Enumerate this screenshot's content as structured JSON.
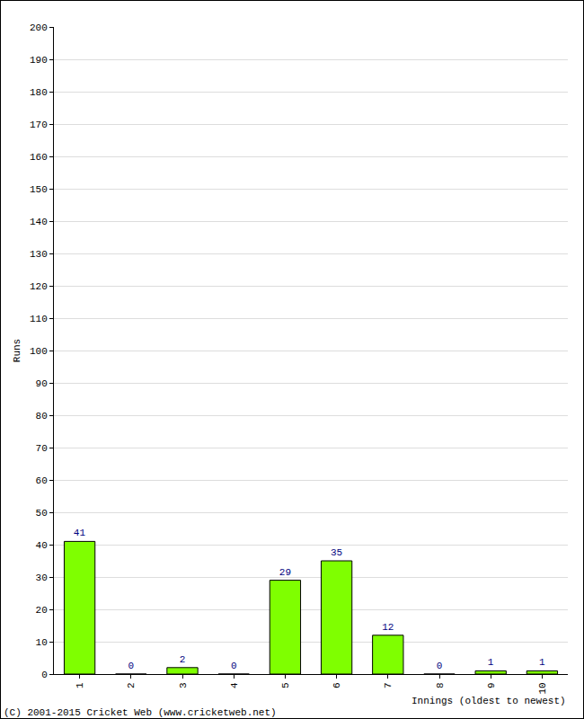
{
  "chart_data": {
    "type": "bar",
    "x_label": "Innings (oldest to newest)",
    "y_label": "Runs",
    "annotations": [
      "(C) 2001-2015 Cricket Web (www.cricketweb.net)"
    ],
    "categories": [
      "1",
      "2",
      "3",
      "4",
      "5",
      "6",
      "7",
      "8",
      "9",
      "10"
    ],
    "values": [
      41,
      0,
      2,
      0,
      29,
      35,
      12,
      0,
      1,
      1
    ],
    "color": "#7fff00",
    "ylim": [
      0,
      200
    ],
    "yticks": [
      0,
      10,
      20,
      30,
      40,
      50,
      60,
      70,
      80,
      90,
      100,
      110,
      120,
      130,
      140,
      150,
      160,
      170,
      180,
      190,
      200
    ],
    "grid": true,
    "data_labels": true
  }
}
